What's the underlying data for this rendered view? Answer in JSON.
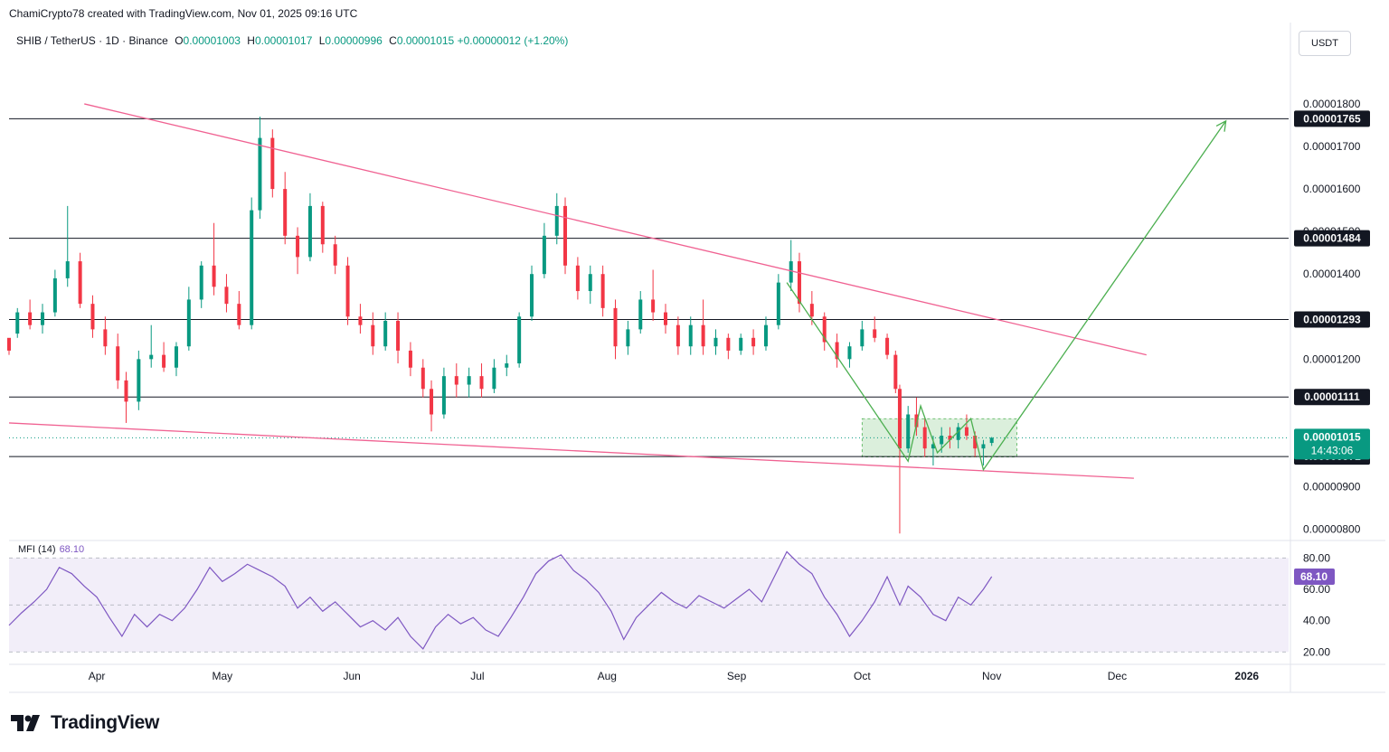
{
  "header": {
    "attribution": "ChamiCrypto78 created with TradingView.com, Nov 01, 2025 09:16 UTC",
    "symbol": "SHIB / TetherUS · 1D · Binance",
    "open_label": "O",
    "open": "0.00001003",
    "high_label": "H",
    "high": "0.00001017",
    "low_label": "L",
    "low": "0.00000996",
    "close_label": "C",
    "close": "0.00001015",
    "change": "+0.00000012 (+1.20%)"
  },
  "currency_button": "USDT",
  "brand": {
    "name": "TradingView",
    "icon": "tradingview-logo-icon"
  },
  "colors": {
    "up": "#089981",
    "down": "#f23645",
    "trendline": "#f06292",
    "projection": "#4caf50",
    "mfi": "#7e57c2"
  },
  "chart_data": {
    "type": "candlestick",
    "symbol": "SHIB / TetherUS",
    "interval": "1D",
    "ylim": [
      7.8e-06,
      1.87e-05
    ],
    "price_ticks": [
      "0.00001800",
      "0.00001700",
      "0.00001600",
      "0.00001500",
      "0.00001400",
      "0.00001200",
      "0.00000900",
      "0.00000800"
    ],
    "x_ticks": [
      "Apr",
      "May",
      "Jun",
      "Jul",
      "Aug",
      "Sep",
      "Oct",
      "Nov",
      "Dec",
      "2026"
    ],
    "last_price": {
      "value": "0.00001015",
      "countdown": "14:43:06"
    },
    "horizontal_levels": [
      {
        "price": 1.765e-05,
        "label": "0.00001765"
      },
      {
        "price": 1.484e-05,
        "label": "0.00001484"
      },
      {
        "price": 1.293e-05,
        "label": "0.00001293"
      },
      {
        "price": 1.111e-05,
        "label": "0.00001111"
      },
      {
        "price": 9.71e-06,
        "label": "0.00000971"
      }
    ],
    "trendlines": [
      {
        "from": [
          "2025-03-29",
          1.8e-05
        ],
        "to": [
          "2025-12-08",
          1.21e-05
        ]
      },
      {
        "from": [
          "2025-03-11",
          1.05e-05
        ],
        "to": [
          "2025-12-05",
          9.2e-06
        ]
      }
    ],
    "consolidation_box": {
      "from": "2025-10-01",
      "to": "2025-11-07",
      "top": 1.06e-05,
      "bottom": 9.7e-06
    },
    "zigzag": [
      [
        "2025-09-13",
        1.38e-05
      ],
      [
        "2025-10-12",
        9.6e-06
      ],
      [
        "2025-10-15",
        1.09e-05
      ],
      [
        "2025-10-19",
        9.8e-06
      ],
      [
        "2025-10-27",
        1.06e-05
      ],
      [
        "2025-10-30",
        9.4e-06
      ],
      [
        "2025-12-27",
        1.76e-05
      ]
    ],
    "ohlc_series": [
      [
        "2025-03-11",
        1.25e-05,
        1.24e-05,
        1.21e-05,
        1.22e-05
      ],
      [
        "2025-03-13",
        1.26e-05,
        1.32e-05,
        1.25e-05,
        1.31e-05
      ],
      [
        "2025-03-16",
        1.31e-05,
        1.34e-05,
        1.27e-05,
        1.28e-05
      ],
      [
        "2025-03-19",
        1.28e-05,
        1.33e-05,
        1.26e-05,
        1.31e-05
      ],
      [
        "2025-03-22",
        1.31e-05,
        1.41e-05,
        1.3e-05,
        1.39e-05
      ],
      [
        "2025-03-25",
        1.39e-05,
        1.56e-05,
        1.37e-05,
        1.43e-05
      ],
      [
        "2025-03-28",
        1.43e-05,
        1.45e-05,
        1.32e-05,
        1.33e-05
      ],
      [
        "2025-03-31",
        1.33e-05,
        1.35e-05,
        1.25e-05,
        1.27e-05
      ],
      [
        "2025-04-03",
        1.27e-05,
        1.3e-05,
        1.21e-05,
        1.23e-05
      ],
      [
        "2025-04-06",
        1.23e-05,
        1.26e-05,
        1.13e-05,
        1.15e-05
      ],
      [
        "2025-04-08",
        1.15e-05,
        1.17e-05,
        1.05e-05,
        1.1e-05
      ],
      [
        "2025-04-11",
        1.1e-05,
        1.22e-05,
        1.08e-05,
        1.2e-05
      ],
      [
        "2025-04-14",
        1.2e-05,
        1.28e-05,
        1.18e-05,
        1.21e-05
      ],
      [
        "2025-04-17",
        1.21e-05,
        1.24e-05,
        1.17e-05,
        1.18e-05
      ],
      [
        "2025-04-20",
        1.18e-05,
        1.24e-05,
        1.16e-05,
        1.23e-05
      ],
      [
        "2025-04-23",
        1.23e-05,
        1.37e-05,
        1.22e-05,
        1.34e-05
      ],
      [
        "2025-04-26",
        1.34e-05,
        1.43e-05,
        1.32e-05,
        1.42e-05
      ],
      [
        "2025-04-29",
        1.42e-05,
        1.52e-05,
        1.35e-05,
        1.37e-05
      ],
      [
        "2025-05-02",
        1.37e-05,
        1.4e-05,
        1.31e-05,
        1.33e-05
      ],
      [
        "2025-05-05",
        1.33e-05,
        1.36e-05,
        1.27e-05,
        1.28e-05
      ],
      [
        "2025-05-08",
        1.28e-05,
        1.58e-05,
        1.27e-05,
        1.55e-05
      ],
      [
        "2025-05-10",
        1.55e-05,
        1.77e-05,
        1.53e-05,
        1.72e-05
      ],
      [
        "2025-05-13",
        1.72e-05,
        1.74e-05,
        1.58e-05,
        1.6e-05
      ],
      [
        "2025-05-16",
        1.6e-05,
        1.64e-05,
        1.47e-05,
        1.49e-05
      ],
      [
        "2025-05-19",
        1.49e-05,
        1.51e-05,
        1.4e-05,
        1.44e-05
      ],
      [
        "2025-05-22",
        1.44e-05,
        1.59e-05,
        1.43e-05,
        1.56e-05
      ],
      [
        "2025-05-25",
        1.56e-05,
        1.57e-05,
        1.45e-05,
        1.47e-05
      ],
      [
        "2025-05-28",
        1.47e-05,
        1.49e-05,
        1.4e-05,
        1.42e-05
      ],
      [
        "2025-05-31",
        1.42e-05,
        1.44e-05,
        1.28e-05,
        1.3e-05
      ],
      [
        "2025-06-03",
        1.3e-05,
        1.33e-05,
        1.26e-05,
        1.28e-05
      ],
      [
        "2025-06-06",
        1.28e-05,
        1.31e-05,
        1.21e-05,
        1.23e-05
      ],
      [
        "2025-06-09",
        1.23e-05,
        1.31e-05,
        1.22e-05,
        1.29e-05
      ],
      [
        "2025-06-12",
        1.29e-05,
        1.31e-05,
        1.19e-05,
        1.22e-05
      ],
      [
        "2025-06-15",
        1.22e-05,
        1.24e-05,
        1.16e-05,
        1.18e-05
      ],
      [
        "2025-06-18",
        1.18e-05,
        1.2e-05,
        1.11e-05,
        1.13e-05
      ],
      [
        "2025-06-20",
        1.13e-05,
        1.15e-05,
        1.03e-05,
        1.07e-05
      ],
      [
        "2025-06-23",
        1.07e-05,
        1.18e-05,
        1.06e-05,
        1.16e-05
      ],
      [
        "2025-06-26",
        1.16e-05,
        1.19e-05,
        1.11e-05,
        1.14e-05
      ],
      [
        "2025-06-29",
        1.14e-05,
        1.18e-05,
        1.11e-05,
        1.16e-05
      ],
      [
        "2025-07-02",
        1.16e-05,
        1.19e-05,
        1.11e-05,
        1.13e-05
      ],
      [
        "2025-07-05",
        1.13e-05,
        1.2e-05,
        1.12e-05,
        1.18e-05
      ],
      [
        "2025-07-08",
        1.18e-05,
        1.21e-05,
        1.16e-05,
        1.19e-05
      ],
      [
        "2025-07-11",
        1.19e-05,
        1.31e-05,
        1.18e-05,
        1.3e-05
      ],
      [
        "2025-07-14",
        1.3e-05,
        1.42e-05,
        1.29e-05,
        1.4e-05
      ],
      [
        "2025-07-17",
        1.4e-05,
        1.52e-05,
        1.39e-05,
        1.49e-05
      ],
      [
        "2025-07-20",
        1.49e-05,
        1.59e-05,
        1.47e-05,
        1.56e-05
      ],
      [
        "2025-07-22",
        1.56e-05,
        1.58e-05,
        1.4e-05,
        1.42e-05
      ],
      [
        "2025-07-25",
        1.42e-05,
        1.44e-05,
        1.34e-05,
        1.36e-05
      ],
      [
        "2025-07-28",
        1.36e-05,
        1.42e-05,
        1.33e-05,
        1.4e-05
      ],
      [
        "2025-07-31",
        1.4e-05,
        1.42e-05,
        1.3e-05,
        1.32e-05
      ],
      [
        "2025-08-03",
        1.32e-05,
        1.34e-05,
        1.2e-05,
        1.23e-05
      ],
      [
        "2025-08-06",
        1.23e-05,
        1.29e-05,
        1.21e-05,
        1.27e-05
      ],
      [
        "2025-08-09",
        1.27e-05,
        1.36e-05,
        1.26e-05,
        1.34e-05
      ],
      [
        "2025-08-12",
        1.34e-05,
        1.41e-05,
        1.29e-05,
        1.31e-05
      ],
      [
        "2025-08-15",
        1.31e-05,
        1.33e-05,
        1.26e-05,
        1.28e-05
      ],
      [
        "2025-08-18",
        1.28e-05,
        1.3e-05,
        1.21e-05,
        1.23e-05
      ],
      [
        "2025-08-21",
        1.23e-05,
        1.3e-05,
        1.21e-05,
        1.28e-05
      ],
      [
        "2025-08-24",
        1.28e-05,
        1.34e-05,
        1.21e-05,
        1.23e-05
      ],
      [
        "2025-08-27",
        1.23e-05,
        1.27e-05,
        1.21e-05,
        1.25e-05
      ],
      [
        "2025-08-30",
        1.25e-05,
        1.26e-05,
        1.2e-05,
        1.22e-05
      ],
      [
        "2025-09-02",
        1.22e-05,
        1.26e-05,
        1.21e-05,
        1.25e-05
      ],
      [
        "2025-09-05",
        1.25e-05,
        1.27e-05,
        1.21e-05,
        1.23e-05
      ],
      [
        "2025-09-08",
        1.23e-05,
        1.3e-05,
        1.22e-05,
        1.28e-05
      ],
      [
        "2025-09-11",
        1.28e-05,
        1.4e-05,
        1.27e-05,
        1.38e-05
      ],
      [
        "2025-09-14",
        1.38e-05,
        1.48e-05,
        1.36e-05,
        1.43e-05
      ],
      [
        "2025-09-16",
        1.43e-05,
        1.45e-05,
        1.31e-05,
        1.33e-05
      ],
      [
        "2025-09-19",
        1.33e-05,
        1.36e-05,
        1.28e-05,
        1.3e-05
      ],
      [
        "2025-09-22",
        1.3e-05,
        1.31e-05,
        1.22e-05,
        1.24e-05
      ],
      [
        "2025-09-25",
        1.24e-05,
        1.26e-05,
        1.18e-05,
        1.2e-05
      ],
      [
        "2025-09-28",
        1.2e-05,
        1.24e-05,
        1.18e-05,
        1.23e-05
      ],
      [
        "2025-10-01",
        1.23e-05,
        1.29e-05,
        1.22e-05,
        1.27e-05
      ],
      [
        "2025-10-04",
        1.27e-05,
        1.3e-05,
        1.24e-05,
        1.25e-05
      ],
      [
        "2025-10-07",
        1.25e-05,
        1.26e-05,
        1.2e-05,
        1.21e-05
      ],
      [
        "2025-10-09",
        1.21e-05,
        1.22e-05,
        1.12e-05,
        1.13e-05
      ],
      [
        "2025-10-10",
        1.13e-05,
        1.14e-05,
        7.9e-06,
        9.9e-06
      ],
      [
        "2025-10-12",
        9.9e-06,
        1.09e-05,
        9.8e-06,
        1.07e-05
      ],
      [
        "2025-10-14",
        1.07e-05,
        1.11e-05,
        1.02e-05,
        1.04e-05
      ],
      [
        "2025-10-16",
        1.04e-05,
        1.06e-05,
        9.7e-06,
        9.9e-06
      ],
      [
        "2025-10-18",
        9.9e-06,
        1.02e-05,
        9.5e-06,
        1e-05
      ],
      [
        "2025-10-20",
        1e-05,
        1.04e-05,
        9.8e-06,
        1.02e-05
      ],
      [
        "2025-10-22",
        1.02e-05,
        1.04e-05,
        9.9e-06,
        1.01e-05
      ],
      [
        "2025-10-24",
        1.01e-05,
        1.05e-05,
        9.9e-06,
        1.04e-05
      ],
      [
        "2025-10-26",
        1.04e-05,
        1.07e-05,
        1.01e-05,
        1.02e-05
      ],
      [
        "2025-10-28",
        1.02e-05,
        1.03e-05,
        9.7e-06,
        9.9e-06
      ],
      [
        "2025-10-30",
        9.9e-06,
        1.01e-05,
        9.5e-06,
        1e-05
      ],
      [
        "2025-11-01",
        1.003e-05,
        1.017e-05,
        9.96e-06,
        1.015e-05
      ]
    ],
    "mfi": {
      "label": "MFI (14)",
      "value": "68.10",
      "ylim": [
        15,
        90
      ],
      "ticks": [
        "80.00",
        "60.00",
        "40.00",
        "20.00"
      ],
      "band": [
        20,
        80
      ],
      "series": [
        [
          "2025-03-11",
          37
        ],
        [
          "2025-03-14",
          45
        ],
        [
          "2025-03-17",
          52
        ],
        [
          "2025-03-20",
          60
        ],
        [
          "2025-03-23",
          74
        ],
        [
          "2025-03-26",
          70
        ],
        [
          "2025-03-29",
          62
        ],
        [
          "2025-04-01",
          55
        ],
        [
          "2025-04-04",
          42
        ],
        [
          "2025-04-07",
          30
        ],
        [
          "2025-04-10",
          44
        ],
        [
          "2025-04-13",
          36
        ],
        [
          "2025-04-16",
          44
        ],
        [
          "2025-04-19",
          40
        ],
        [
          "2025-04-22",
          48
        ],
        [
          "2025-04-25",
          60
        ],
        [
          "2025-04-28",
          74
        ],
        [
          "2025-05-01",
          65
        ],
        [
          "2025-05-04",
          70
        ],
        [
          "2025-05-07",
          76
        ],
        [
          "2025-05-10",
          72
        ],
        [
          "2025-05-13",
          68
        ],
        [
          "2025-05-16",
          62
        ],
        [
          "2025-05-19",
          48
        ],
        [
          "2025-05-22",
          55
        ],
        [
          "2025-05-25",
          46
        ],
        [
          "2025-05-28",
          52
        ],
        [
          "2025-05-31",
          44
        ],
        [
          "2025-06-03",
          36
        ],
        [
          "2025-06-06",
          40
        ],
        [
          "2025-06-09",
          34
        ],
        [
          "2025-06-12",
          42
        ],
        [
          "2025-06-15",
          30
        ],
        [
          "2025-06-18",
          22
        ],
        [
          "2025-06-21",
          36
        ],
        [
          "2025-06-24",
          44
        ],
        [
          "2025-06-27",
          38
        ],
        [
          "2025-06-30",
          42
        ],
        [
          "2025-07-03",
          34
        ],
        [
          "2025-07-06",
          30
        ],
        [
          "2025-07-09",
          42
        ],
        [
          "2025-07-12",
          55
        ],
        [
          "2025-07-15",
          70
        ],
        [
          "2025-07-18",
          78
        ],
        [
          "2025-07-21",
          82
        ],
        [
          "2025-07-24",
          72
        ],
        [
          "2025-07-27",
          66
        ],
        [
          "2025-07-30",
          58
        ],
        [
          "2025-08-02",
          46
        ],
        [
          "2025-08-05",
          28
        ],
        [
          "2025-08-08",
          42
        ],
        [
          "2025-08-11",
          50
        ],
        [
          "2025-08-14",
          58
        ],
        [
          "2025-08-17",
          52
        ],
        [
          "2025-08-20",
          48
        ],
        [
          "2025-08-23",
          56
        ],
        [
          "2025-08-26",
          52
        ],
        [
          "2025-08-29",
          48
        ],
        [
          "2025-09-01",
          54
        ],
        [
          "2025-09-04",
          60
        ],
        [
          "2025-09-07",
          52
        ],
        [
          "2025-09-10",
          68
        ],
        [
          "2025-09-13",
          84
        ],
        [
          "2025-09-16",
          76
        ],
        [
          "2025-09-19",
          70
        ],
        [
          "2025-09-22",
          55
        ],
        [
          "2025-09-25",
          44
        ],
        [
          "2025-09-28",
          30
        ],
        [
          "2025-10-01",
          40
        ],
        [
          "2025-10-04",
          52
        ],
        [
          "2025-10-07",
          68
        ],
        [
          "2025-10-10",
          50
        ],
        [
          "2025-10-12",
          62
        ],
        [
          "2025-10-15",
          55
        ],
        [
          "2025-10-18",
          44
        ],
        [
          "2025-10-21",
          40
        ],
        [
          "2025-10-24",
          55
        ],
        [
          "2025-10-27",
          50
        ],
        [
          "2025-10-30",
          60
        ],
        [
          "2025-11-01",
          68.1
        ]
      ]
    }
  }
}
